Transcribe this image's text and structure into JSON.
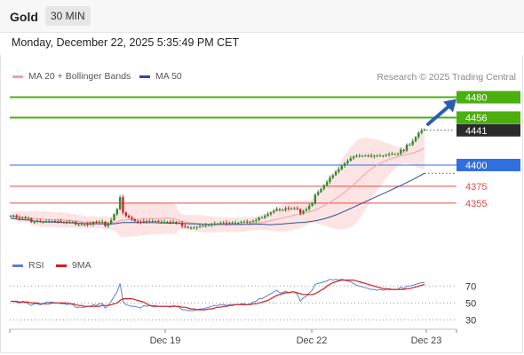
{
  "header": {
    "instrument": "Gold",
    "interval": "30 MIN",
    "datetime": "Monday, December 22, 2025 5:35:49 PM CET"
  },
  "legend": {
    "ma20_label": "MA 20 + Bollinger Bands",
    "ma50_label": "MA 50",
    "credit": "Research © 2025 Trading Central",
    "rsi_label": "RSI",
    "ma9_label": "9MA"
  },
  "colors": {
    "resistance": "#4caf10",
    "support_major": "#2f6fe0",
    "support_minor": "#e04a4a",
    "candle_up": "#2e8b2e",
    "candle_down": "#c62828",
    "ma20": "#f0a0a0",
    "ma50": "#2a4e9a",
    "band": "#fde4e4",
    "rsi": "#5b7fd6",
    "ma9": "#d21f1f",
    "arrow": "#2a5fae"
  },
  "chart_data": [
    {
      "type": "candlestick",
      "title": "",
      "x_ticks": [
        "Dec 19",
        "Dec 22",
        "Dec 23"
      ],
      "ylim": [
        4312,
        4490
      ],
      "levels": [
        {
          "value": 4480,
          "label": "4480",
          "kind": "resistance"
        },
        {
          "value": 4456,
          "label": "4456",
          "kind": "resistance"
        },
        {
          "value": 4441,
          "label": "4441",
          "kind": "last"
        },
        {
          "value": 4400,
          "label": "4400",
          "kind": "support-major"
        },
        {
          "value": 4375,
          "label": "4375",
          "kind": "support-minor"
        },
        {
          "value": 4355,
          "label": "4355",
          "kind": "support-minor"
        }
      ],
      "close": [
        4340,
        4340,
        4338,
        4337,
        4338,
        4337,
        4337,
        4333,
        4333,
        4334,
        4333,
        4333,
        4334,
        4334,
        4334,
        4333,
        4334,
        4333,
        4333,
        4332,
        4333,
        4333,
        4330,
        4330,
        4330,
        4329,
        4331,
        4330,
        4333,
        4332,
        4333,
        4333,
        4328,
        4331,
        4335,
        4342,
        4348,
        4362,
        4344,
        4340,
        4338,
        4336,
        4334,
        4333,
        4332,
        4334,
        4333,
        4334,
        4334,
        4334,
        4333,
        4333,
        4333,
        4333,
        4332,
        4333,
        4332,
        4332,
        4328,
        4327,
        4326,
        4326,
        4326,
        4327,
        4328,
        4328,
        4329,
        4329,
        4330,
        4331,
        4331,
        4332,
        4332,
        4331,
        4332,
        4332,
        4332,
        4332,
        4333,
        4333,
        4332,
        4333,
        4334,
        4335,
        4338,
        4338,
        4340,
        4342,
        4344,
        4346,
        4348,
        4347,
        4347,
        4349,
        4348,
        4349,
        4349,
        4348,
        4343,
        4346,
        4348,
        4352,
        4355,
        4365,
        4368,
        4372,
        4376,
        4380,
        4385,
        4388,
        4392,
        4395,
        4399,
        4402,
        4405,
        4408,
        4410,
        4411,
        4411,
        4411,
        4411,
        4411,
        4410,
        4411,
        4411,
        4411,
        4411,
        4412,
        4413,
        4413,
        4413,
        4413,
        4418,
        4417,
        4424,
        4424,
        4428,
        4433,
        4438,
        4441,
        4442
      ]
    },
    {
      "type": "line",
      "title": "",
      "ylim": [
        20,
        85
      ],
      "y_ticks": [
        70,
        50,
        30
      ],
      "rsi": [
        52,
        52,
        51,
        50,
        52,
        51,
        49,
        47,
        49,
        49,
        48,
        49,
        51,
        51,
        51,
        50,
        50,
        49,
        49,
        48,
        49,
        48,
        45,
        45,
        45,
        45,
        46,
        46,
        48,
        47,
        49,
        49,
        44,
        47,
        52,
        58,
        63,
        73,
        52,
        48,
        47,
        46,
        46,
        45,
        44,
        47,
        46,
        47,
        47,
        47,
        46,
        46,
        46,
        46,
        45,
        47,
        46,
        45,
        42,
        42,
        41,
        41,
        41,
        42,
        43,
        43,
        44,
        45,
        46,
        47,
        47,
        48,
        48,
        47,
        48,
        48,
        48,
        48,
        49,
        49,
        48,
        49,
        51,
        52,
        55,
        55,
        57,
        59,
        61,
        63,
        65,
        62,
        62,
        64,
        62,
        63,
        63,
        60,
        52,
        56,
        58,
        62,
        65,
        72,
        73,
        74,
        75,
        76,
        78,
        77,
        78,
        77,
        78,
        77,
        76,
        75,
        73,
        71,
        70,
        69,
        68,
        67,
        66,
        66,
        65,
        66,
        65,
        66,
        67,
        66,
        66,
        66,
        69,
        67,
        70,
        70,
        71,
        72,
        73,
        74,
        74
      ],
      "ma9": [
        52,
        52,
        52,
        51,
        51,
        51,
        51,
        50,
        50,
        50,
        49,
        49,
        49,
        49,
        50,
        50,
        50,
        50,
        50,
        50,
        49,
        49,
        48,
        47,
        47,
        46,
        46,
        46,
        46,
        46,
        46,
        47,
        47,
        47,
        48,
        49,
        50,
        53,
        55,
        55,
        55,
        55,
        54,
        53,
        52,
        51,
        49,
        47,
        46,
        46,
        46,
        46,
        46,
        46,
        46,
        46,
        46,
        46,
        45,
        45,
        44,
        43,
        43,
        42,
        42,
        42,
        42,
        43,
        43,
        44,
        45,
        45,
        46,
        46,
        47,
        47,
        48,
        48,
        48,
        48,
        48,
        48,
        49,
        49,
        50,
        51,
        52,
        53,
        55,
        57,
        59,
        60,
        61,
        62,
        62,
        63,
        63,
        62,
        61,
        60,
        60,
        60,
        60,
        61,
        63,
        65,
        67,
        70,
        72,
        74,
        75,
        76,
        77,
        77,
        77,
        77,
        77,
        76,
        75,
        74,
        73,
        72,
        71,
        70,
        69,
        68,
        67,
        67,
        66,
        66,
        66,
        66,
        66,
        66,
        67,
        67,
        68,
        69,
        70,
        71,
        72
      ]
    }
  ]
}
